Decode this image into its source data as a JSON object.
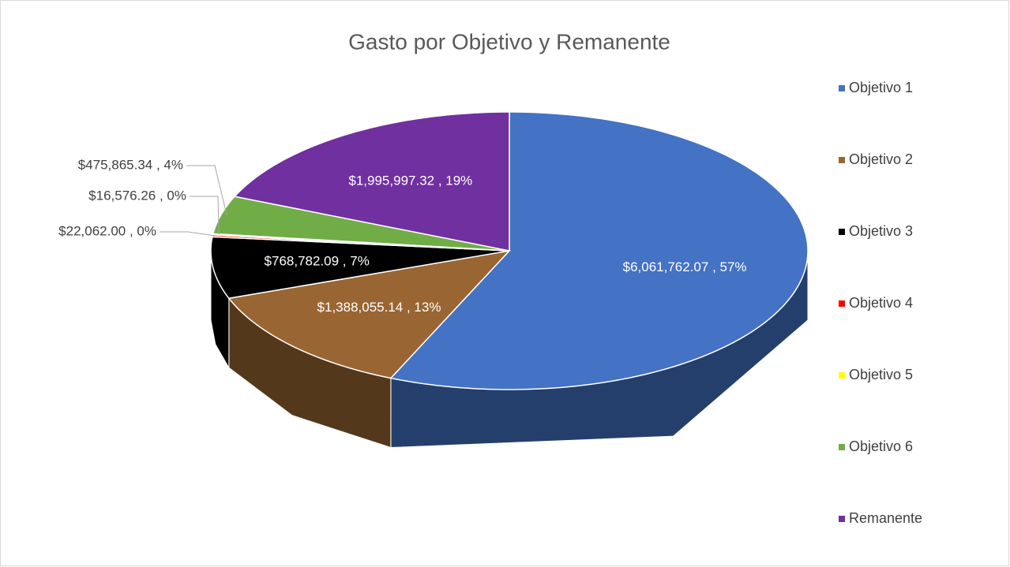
{
  "chart_data": {
    "type": "pie",
    "title": "Gasto por Objetivo y Remanente",
    "categories": [
      "Objetivo 1",
      "Objetivo 2",
      "Objetivo 3",
      "Objetivo 4",
      "Objetivo 5",
      "Objetivo 6",
      "Remanente"
    ],
    "values": [
      6061762.07,
      1388055.14,
      768782.09,
      22062.0,
      16576.26,
      475865.34,
      1995997.32
    ],
    "value_labels": [
      "$6,061,762.07 , 57%",
      "$1,388,055.14 , 13%",
      "$768,782.09 , 7%",
      "$22,062.00 , 0%",
      "$16,576.26 , 0%",
      "$475,865.34 , 4%",
      "$1,995,997.32 , 19%"
    ],
    "colors": [
      "#4472c4",
      "#996633",
      "#000000",
      "#ff0000",
      "#ffff00",
      "#70ad47",
      "#7030a0"
    ],
    "legend": "right"
  }
}
